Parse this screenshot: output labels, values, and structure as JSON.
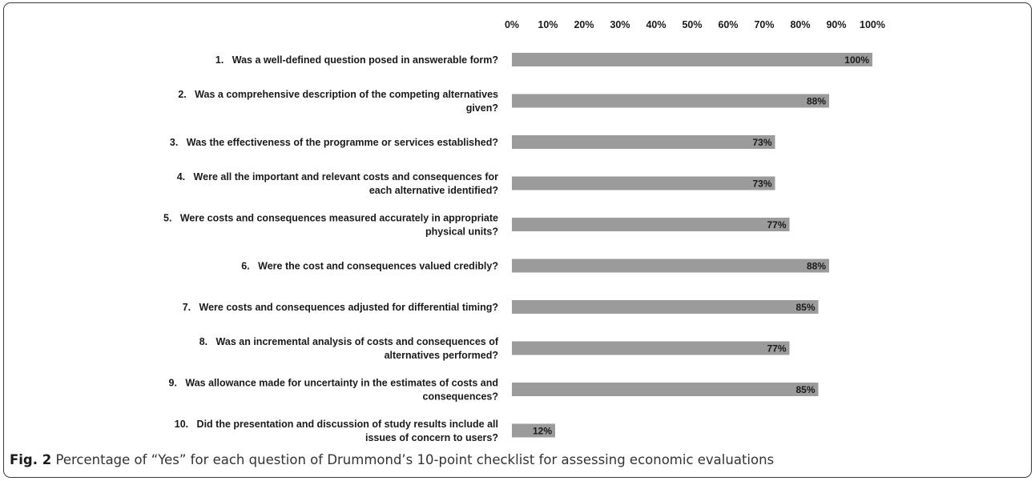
{
  "chart_data": {
    "type": "bar",
    "orientation": "horizontal",
    "categories": [
      [
        "1.   Was a well-defined question posed in answerable form?"
      ],
      [
        "2.   Was a comprehensive description of the competing alternatives",
        "given?"
      ],
      [
        "3.   Was the effectiveness of the programme or services established?"
      ],
      [
        "4.   Were all the important and relevant costs and consequences for",
        "each alternative identified?"
      ],
      [
        "5.   Were costs and consequences measured accurately in appropriate",
        "physical units?"
      ],
      [
        "6.   Were the cost and consequences valued credibly?"
      ],
      [
        "7.   Were costs and consequences adjusted for differential timing?"
      ],
      [
        "8.   Was an incremental analysis of costs and consequences of",
        "alternatives performed?"
      ],
      [
        "9.   Was allowance made for uncertainty in the estimates of costs and",
        "consequences?"
      ],
      [
        "10.   Did the presentation and discussion of study results include all",
        "issues of concern to users?"
      ]
    ],
    "values": [
      100,
      88,
      73,
      73,
      77,
      88,
      85,
      77,
      85,
      12
    ],
    "data_labels": [
      "100%",
      "88%",
      "73%",
      "73%",
      "77%",
      "88%",
      "85%",
      "77%",
      "85%",
      "12%"
    ],
    "xlim": [
      0,
      100
    ],
    "x_ticks": [
      "0%",
      "10%",
      "20%",
      "30%",
      "40%",
      "50%",
      "60%",
      "70%",
      "80%",
      "90%",
      "100%"
    ],
    "x_axis_position": "top",
    "grid": false,
    "bar_color": "#9b9b9b",
    "label_color": "#1a1a1a"
  },
  "caption": {
    "fig_label": "Fig. 2",
    "text": " Percentage of “Yes” for each question of Drummond’s 10-point checklist for assessing economic evaluations"
  }
}
